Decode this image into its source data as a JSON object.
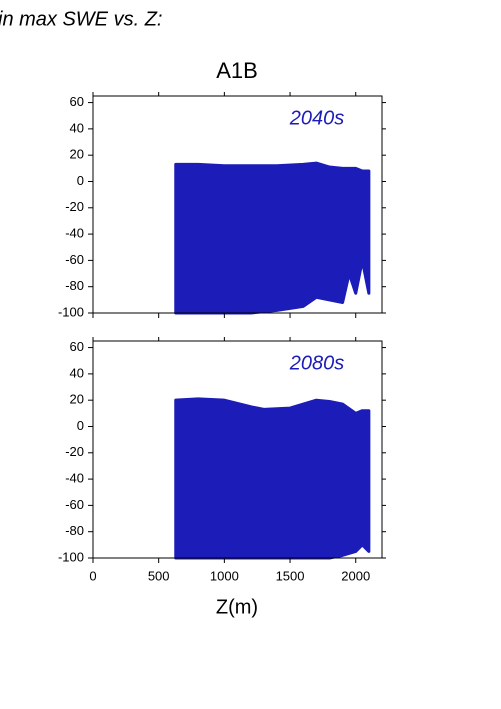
{
  "header": {
    "title": "in max SWE vs. Z:"
  },
  "chart_data": [
    {
      "type": "range-area",
      "title": "A1B",
      "annotation": "2040s",
      "color": "#1c1cb8",
      "x": [
        630,
        800,
        1000,
        1200,
        1400,
        1600,
        1700,
        1800,
        1900,
        1950,
        2000,
        2050,
        2100
      ],
      "series": [
        {
          "values": [
            13,
            13,
            12,
            12,
            12,
            13,
            14,
            11,
            10,
            10,
            10,
            8,
            8
          ]
        },
        {
          "values": [
            -100,
            -100,
            -100,
            -100,
            -98,
            -95,
            -88,
            -90,
            -92,
            -70,
            -85,
            -60,
            -85
          ]
        }
      ],
      "xlim": [
        0,
        2200
      ],
      "xticks": [
        0,
        500,
        1000,
        1500,
        2000
      ],
      "xtick_labels": false,
      "ylim": [
        -100,
        65
      ],
      "yticks": [
        -100,
        -80,
        -60,
        -40,
        -20,
        0,
        20,
        40,
        60
      ]
    },
    {
      "type": "range-area",
      "annotation": "2080s",
      "x_label": "Z(m)",
      "color": "#1c1cb8",
      "x": [
        630,
        800,
        1000,
        1200,
        1300,
        1500,
        1700,
        1800,
        1900,
        2000,
        2050,
        2100
      ],
      "series": [
        {
          "values": [
            20,
            21,
            20,
            15,
            13,
            14,
            20,
            19,
            17,
            10,
            12,
            12
          ]
        },
        {
          "values": [
            -100,
            -100,
            -100,
            -100,
            -100,
            -100,
            -100,
            -100,
            -98,
            -95,
            -90,
            -95
          ]
        }
      ],
      "xlim": [
        0,
        2200
      ],
      "xticks": [
        0,
        500,
        1000,
        1500,
        2000
      ],
      "xtick_labels": true,
      "ylim": [
        -100,
        65
      ],
      "yticks": [
        -100,
        -80,
        -60,
        -40,
        -20,
        0,
        20,
        40,
        60
      ]
    }
  ]
}
